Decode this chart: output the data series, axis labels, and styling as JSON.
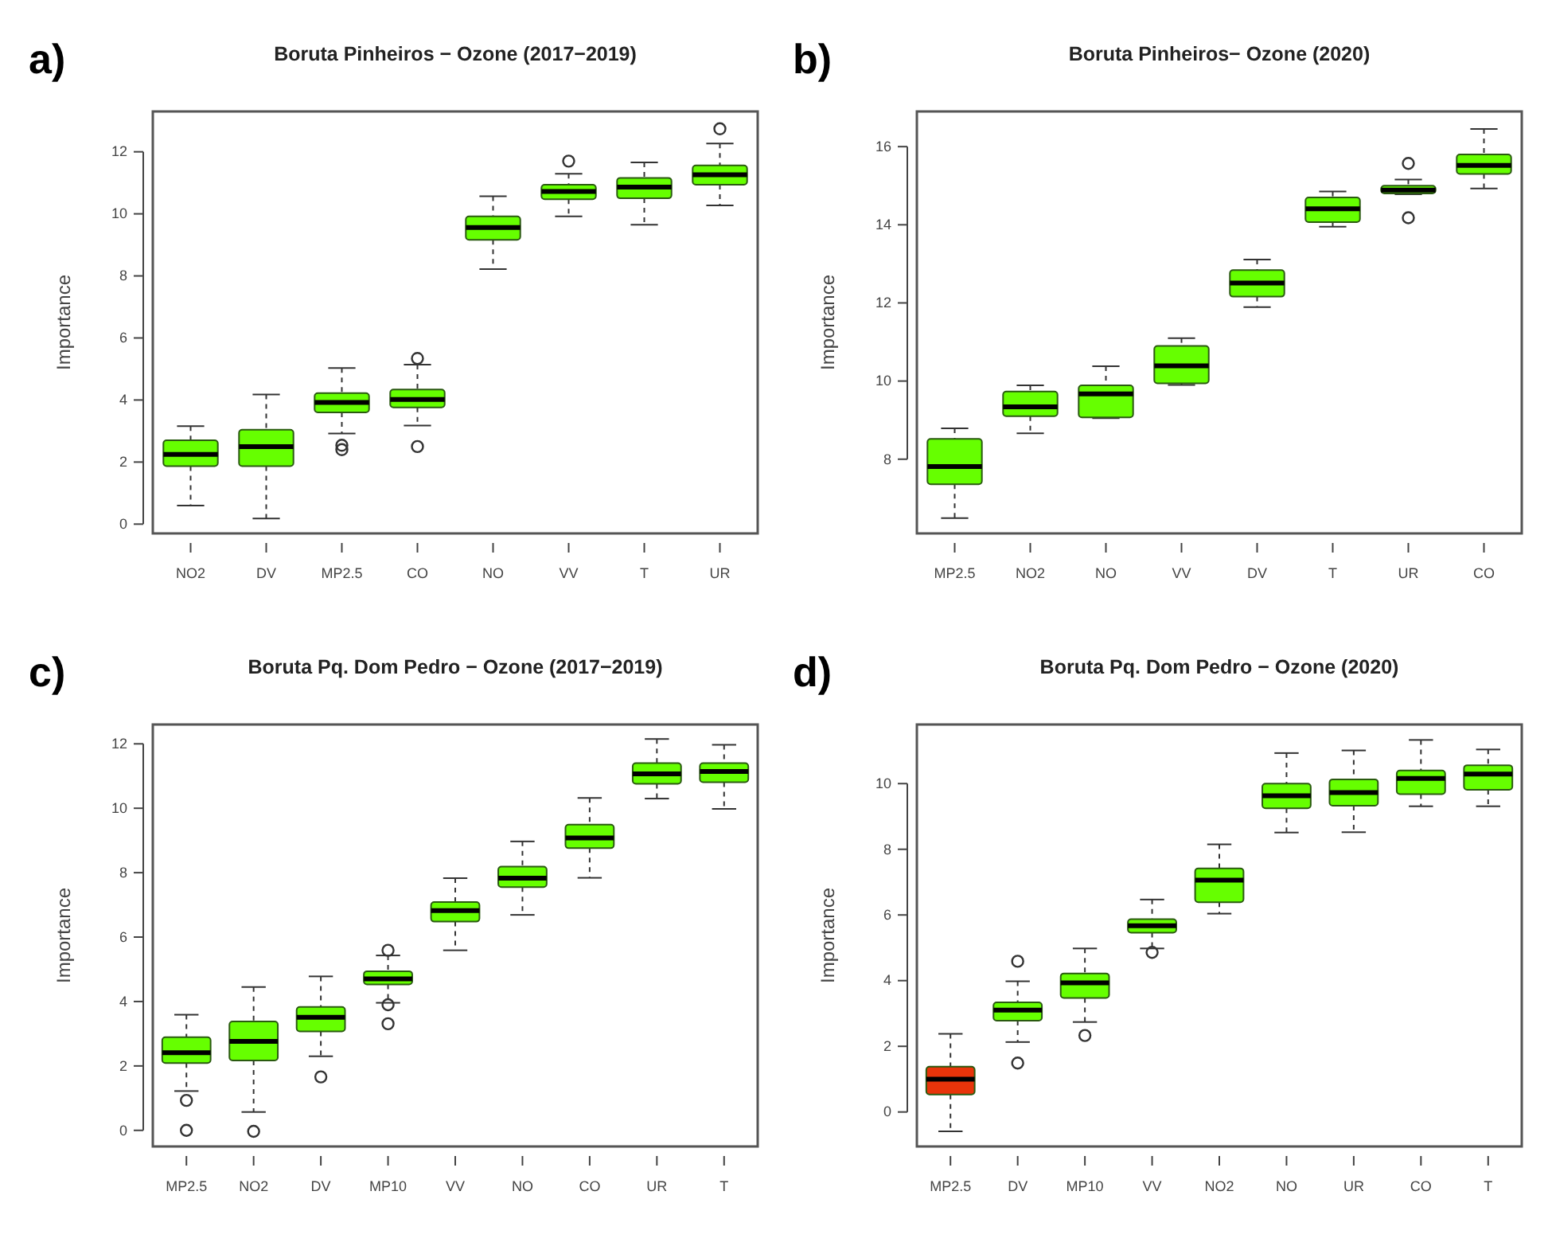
{
  "chart_data": [
    {
      "type": "box",
      "title": "Boruta Pinheiros − Ozone (2017−2019)",
      "ylabel": "Importance",
      "annotations": [
        "a)"
      ],
      "categories": [
        "NO2",
        "DV",
        "MP2.5",
        "CO",
        "NO",
        "VV",
        "T",
        "UR"
      ],
      "ylim": [
        -0.3,
        13.3
      ],
      "yticks": [
        0,
        2,
        4,
        6,
        8,
        10,
        12
      ],
      "colors": [
        "#66ff00",
        "#66ff00",
        "#66ff00",
        "#66ff00",
        "#66ff00",
        "#66ff00",
        "#66ff00",
        "#66ff00"
      ],
      "boxes": [
        {
          "low": 0.6,
          "q1": 1.87,
          "median": 2.25,
          "q3": 2.7,
          "high": 3.16
        },
        {
          "low": 0.18,
          "q1": 1.87,
          "median": 2.5,
          "q3": 3.04,
          "high": 4.18
        },
        {
          "low": 2.92,
          "q1": 3.6,
          "median": 3.92,
          "q3": 4.22,
          "high": 5.03,
          "outliers": [
            2.54,
            2.4
          ]
        },
        {
          "low": 3.18,
          "q1": 3.76,
          "median": 4.02,
          "q3": 4.34,
          "high": 5.14,
          "outliers": [
            5.34,
            2.5
          ]
        },
        {
          "low": 8.22,
          "q1": 9.16,
          "median": 9.56,
          "q3": 9.92,
          "high": 10.57
        },
        {
          "low": 9.92,
          "q1": 10.47,
          "median": 10.72,
          "q3": 10.94,
          "high": 11.29,
          "outliers": [
            11.7
          ]
        },
        {
          "low": 9.65,
          "q1": 10.5,
          "median": 10.86,
          "q3": 11.16,
          "high": 11.66
        },
        {
          "low": 10.27,
          "q1": 10.94,
          "median": 11.26,
          "q3": 11.56,
          "high": 12.27,
          "outliers": [
            12.74
          ]
        }
      ]
    },
    {
      "type": "box",
      "title": "Boruta Pinheiros−  Ozone (2020)",
      "ylabel": "Importance",
      "annotations": [
        "b)"
      ],
      "categories": [
        "MP2.5",
        "NO2",
        "NO",
        "VV",
        "DV",
        "T",
        "UR",
        "CO"
      ],
      "ylim": [
        6.1,
        16.9
      ],
      "yticks": [
        8,
        10,
        12,
        14,
        16
      ],
      "colors": [
        "#66ff00",
        "#66ff00",
        "#66ff00",
        "#66ff00",
        "#66ff00",
        "#66ff00",
        "#66ff00",
        "#66ff00"
      ],
      "boxes": [
        {
          "low": 6.49,
          "q1": 7.36,
          "median": 7.81,
          "q3": 8.52,
          "high": 8.79
        },
        {
          "low": 8.66,
          "q1": 9.1,
          "median": 9.34,
          "q3": 9.73,
          "high": 9.89
        },
        {
          "low": 9.05,
          "q1": 9.07,
          "median": 9.67,
          "q3": 9.89,
          "high": 10.38
        },
        {
          "low": 9.9,
          "q1": 9.94,
          "median": 10.39,
          "q3": 10.9,
          "high": 11.1
        },
        {
          "low": 11.89,
          "q1": 12.16,
          "median": 12.51,
          "q3": 12.84,
          "high": 13.11
        },
        {
          "low": 13.95,
          "q1": 14.07,
          "median": 14.41,
          "q3": 14.7,
          "high": 14.85
        },
        {
          "low": 14.78,
          "q1": 14.8,
          "median": 14.89,
          "q3": 15.0,
          "high": 15.16,
          "outliers": [
            15.57,
            14.18
          ]
        },
        {
          "low": 14.93,
          "q1": 15.3,
          "median": 15.52,
          "q3": 15.8,
          "high": 16.45
        }
      ]
    },
    {
      "type": "box",
      "title": "Boruta Pq. Dom Pedro − Ozone (2017−2019)",
      "ylabel": "Importance",
      "annotations": [
        "c)"
      ],
      "categories": [
        "MP2.5",
        "NO2",
        "DV",
        "MP10",
        "VV",
        "NO",
        "CO",
        "UR",
        "T"
      ],
      "ylim": [
        -0.5,
        12.6
      ],
      "yticks": [
        0,
        2,
        4,
        6,
        8,
        10,
        12
      ],
      "colors": [
        "#66ff00",
        "#66ff00",
        "#66ff00",
        "#66ff00",
        "#66ff00",
        "#66ff00",
        "#66ff00",
        "#66ff00",
        "#66ff00"
      ],
      "boxes": [
        {
          "low": 1.22,
          "q1": 2.09,
          "median": 2.41,
          "q3": 2.89,
          "high": 3.59,
          "outliers": [
            0.93,
            0
          ]
        },
        {
          "low": 0.57,
          "q1": 2.17,
          "median": 2.76,
          "q3": 3.38,
          "high": 4.45,
          "outliers": [
            -0.03
          ]
        },
        {
          "low": 2.3,
          "q1": 3.07,
          "median": 3.51,
          "q3": 3.83,
          "high": 4.78,
          "outliers": [
            1.66
          ]
        },
        {
          "low": 3.96,
          "q1": 4.53,
          "median": 4.7,
          "q3": 4.94,
          "high": 5.43,
          "outliers": [
            5.59,
            3.9,
            3.31
          ]
        },
        {
          "low": 5.59,
          "q1": 6.48,
          "median": 6.82,
          "q3": 7.09,
          "high": 7.83
        },
        {
          "low": 6.69,
          "q1": 7.55,
          "median": 7.83,
          "q3": 8.19,
          "high": 8.97
        },
        {
          "low": 7.84,
          "q1": 8.76,
          "median": 9.08,
          "q3": 9.49,
          "high": 10.32
        },
        {
          "low": 10.3,
          "q1": 10.76,
          "median": 11.07,
          "q3": 11.4,
          "high": 12.15
        },
        {
          "low": 9.98,
          "q1": 10.81,
          "median": 11.14,
          "q3": 11.4,
          "high": 11.97
        }
      ]
    },
    {
      "type": "box",
      "title": "Boruta Pq. Dom Pedro −  Ozone (2020)",
      "ylabel": "Importance",
      "annotations": [
        "d)"
      ],
      "categories": [
        "MP2.5",
        "DV",
        "MP10",
        "VV",
        "NO2",
        "NO",
        "UR",
        "CO",
        "T"
      ],
      "ylim": [
        -1.05,
        11.8
      ],
      "yticks": [
        0,
        2,
        4,
        6,
        8,
        10
      ],
      "colors": [
        "#e8340a",
        "#66ff00",
        "#66ff00",
        "#66ff00",
        "#66ff00",
        "#66ff00",
        "#66ff00",
        "#66ff00",
        "#66ff00"
      ],
      "boxes": [
        {
          "low": -0.59,
          "q1": 0.53,
          "median": 1.0,
          "q3": 1.38,
          "high": 2.38
        },
        {
          "low": 2.13,
          "q1": 2.78,
          "median": 3.1,
          "q3": 3.34,
          "high": 3.98,
          "outliers": [
            4.59,
            1.49
          ]
        },
        {
          "low": 2.74,
          "q1": 3.47,
          "median": 3.93,
          "q3": 4.22,
          "high": 4.98,
          "outliers": [
            2.33
          ]
        },
        {
          "low": 4.98,
          "q1": 5.46,
          "median": 5.67,
          "q3": 5.87,
          "high": 6.47,
          "outliers": [
            4.86
          ]
        },
        {
          "low": 6.04,
          "q1": 6.39,
          "median": 7.06,
          "q3": 7.42,
          "high": 8.15
        },
        {
          "low": 8.51,
          "q1": 9.25,
          "median": 9.63,
          "q3": 10.0,
          "high": 10.93
        },
        {
          "low": 8.52,
          "q1": 9.33,
          "median": 9.73,
          "q3": 10.13,
          "high": 11.01
        },
        {
          "low": 9.31,
          "q1": 9.68,
          "median": 10.16,
          "q3": 10.4,
          "high": 11.33
        },
        {
          "low": 9.31,
          "q1": 9.81,
          "median": 10.29,
          "q3": 10.56,
          "high": 11.04
        }
      ]
    }
  ]
}
